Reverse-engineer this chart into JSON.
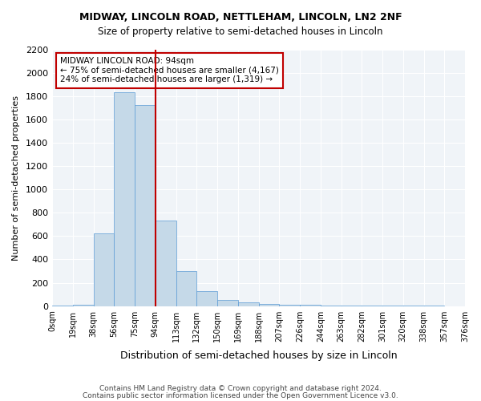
{
  "title": "MIDWAY, LINCOLN ROAD, NETTLEHAM, LINCOLN, LN2 2NF",
  "subtitle": "Size of property relative to semi-detached houses in Lincoln",
  "xlabel": "Distribution of semi-detached houses by size in Lincoln",
  "ylabel": "Number of semi-detached properties",
  "bar_color": "#c5d9e8",
  "bar_edge_color": "#5b9bd5",
  "highlight_color": "#c00000",
  "background_color": "#f0f4f8",
  "annotation_box_color": "#ffffff",
  "annotation_box_edge": "#c00000",
  "annotation_title": "MIDWAY LINCOLN ROAD: 94sqm",
  "annotation_line1": "← 75% of semi-detached houses are smaller (4,167)",
  "annotation_line2": "24% of semi-detached houses are larger (1,319) →",
  "footer1": "Contains HM Land Registry data © Crown copyright and database right 2024.",
  "footer2": "Contains public sector information licensed under the Open Government Licence v3.0.",
  "tick_labels": [
    "0sqm",
    "19sqm",
    "38sqm",
    "56sqm",
    "75sqm",
    "94sqm",
    "113sqm",
    "132sqm",
    "150sqm",
    "169sqm",
    "188sqm",
    "207sqm",
    "226sqm",
    "244sqm",
    "263sqm",
    "282sqm",
    "301sqm",
    "320sqm",
    "338sqm",
    "357sqm",
    "376sqm"
  ],
  "bar_values": [
    5,
    10,
    620,
    1830,
    1720,
    730,
    300,
    130,
    55,
    30,
    20,
    12,
    8,
    6,
    5,
    4,
    3,
    2,
    2,
    1
  ],
  "highlight_bar_index": 5,
  "ylim": [
    0,
    2200
  ],
  "yticks": [
    0,
    200,
    400,
    600,
    800,
    1000,
    1200,
    1400,
    1600,
    1800,
    2000,
    2200
  ]
}
